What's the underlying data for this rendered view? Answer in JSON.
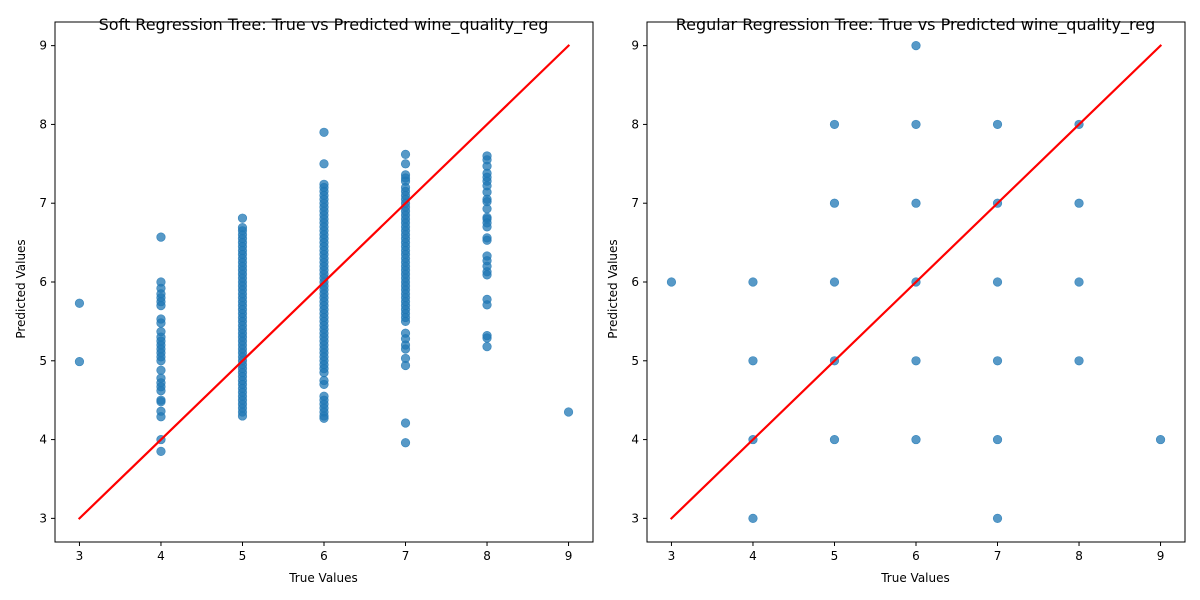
{
  "chart_data": [
    {
      "type": "scatter",
      "title": "Soft Regression Tree: True vs Predicted wine_quality_reg",
      "xlabel": "True Values",
      "ylabel": "Predicted Values",
      "xlim": [
        2.7,
        9.3
      ],
      "ylim": [
        2.7,
        9.3
      ],
      "xticks": [
        "3",
        "4",
        "5",
        "6",
        "7",
        "8",
        "9"
      ],
      "yticks": [
        "3",
        "4",
        "5",
        "6",
        "7",
        "8",
        "9"
      ],
      "grid": false,
      "point_color": "#1f77b4",
      "line_color": "#ff0000",
      "reference_line": {
        "x": [
          3,
          9
        ],
        "y": [
          3,
          9
        ]
      },
      "series": [
        {
          "points": [
            [
              3,
              5.73
            ],
            [
              3,
              4.99
            ],
            [
              4,
              6.57
            ],
            [
              4,
              6.0
            ],
            [
              4,
              5.92
            ],
            [
              4,
              5.85
            ],
            [
              4,
              5.8
            ],
            [
              4,
              5.75
            ],
            [
              4,
              5.7
            ],
            [
              4,
              5.53
            ],
            [
              4,
              5.48
            ],
            [
              4,
              5.37
            ],
            [
              4,
              5.3
            ],
            [
              4,
              5.25
            ],
            [
              4,
              5.2
            ],
            [
              4,
              5.15
            ],
            [
              4,
              5.1
            ],
            [
              4,
              5.05
            ],
            [
              4,
              5.0
            ],
            [
              4,
              4.88
            ],
            [
              4,
              4.78
            ],
            [
              4,
              4.72
            ],
            [
              4,
              4.67
            ],
            [
              4,
              4.62
            ],
            [
              4,
              4.5
            ],
            [
              4,
              4.48
            ],
            [
              4,
              4.36
            ],
            [
              4,
              4.29
            ],
            [
              4,
              4.0
            ],
            [
              4,
              3.85
            ],
            [
              5,
              6.81
            ],
            [
              5,
              6.69
            ],
            [
              5,
              6.65
            ],
            [
              5,
              6.6
            ],
            [
              5,
              6.55
            ],
            [
              5,
              6.5
            ],
            [
              5,
              6.45
            ],
            [
              5,
              6.4
            ],
            [
              5,
              6.35
            ],
            [
              5,
              6.3
            ],
            [
              5,
              6.25
            ],
            [
              5,
              6.2
            ],
            [
              5,
              6.15
            ],
            [
              5,
              6.1
            ],
            [
              5,
              6.05
            ],
            [
              5,
              6.0
            ],
            [
              5,
              5.95
            ],
            [
              5,
              5.9
            ],
            [
              5,
              5.85
            ],
            [
              5,
              5.8
            ],
            [
              5,
              5.75
            ],
            [
              5,
              5.7
            ],
            [
              5,
              5.65
            ],
            [
              5,
              5.6
            ],
            [
              5,
              5.55
            ],
            [
              5,
              5.5
            ],
            [
              5,
              5.45
            ],
            [
              5,
              5.4
            ],
            [
              5,
              5.35
            ],
            [
              5,
              5.3
            ],
            [
              5,
              5.25
            ],
            [
              5,
              5.2
            ],
            [
              5,
              5.15
            ],
            [
              5,
              5.1
            ],
            [
              5,
              5.05
            ],
            [
              5,
              5.0
            ],
            [
              5,
              4.95
            ],
            [
              5,
              4.9
            ],
            [
              5,
              4.85
            ],
            [
              5,
              4.8
            ],
            [
              5,
              4.75
            ],
            [
              5,
              4.7
            ],
            [
              5,
              4.65
            ],
            [
              5,
              4.6
            ],
            [
              5,
              4.55
            ],
            [
              5,
              4.5
            ],
            [
              5,
              4.45
            ],
            [
              5,
              4.4
            ],
            [
              5,
              4.35
            ],
            [
              5,
              4.3
            ],
            [
              6,
              7.9
            ],
            [
              6,
              7.5
            ],
            [
              6,
              7.24
            ],
            [
              6,
              7.2
            ],
            [
              6,
              7.15
            ],
            [
              6,
              7.1
            ],
            [
              6,
              7.05
            ],
            [
              6,
              7.0
            ],
            [
              6,
              6.95
            ],
            [
              6,
              6.9
            ],
            [
              6,
              6.85
            ],
            [
              6,
              6.8
            ],
            [
              6,
              6.75
            ],
            [
              6,
              6.7
            ],
            [
              6,
              6.65
            ],
            [
              6,
              6.6
            ],
            [
              6,
              6.55
            ],
            [
              6,
              6.5
            ],
            [
              6,
              6.45
            ],
            [
              6,
              6.4
            ],
            [
              6,
              6.35
            ],
            [
              6,
              6.3
            ],
            [
              6,
              6.25
            ],
            [
              6,
              6.2
            ],
            [
              6,
              6.15
            ],
            [
              6,
              6.1
            ],
            [
              6,
              6.05
            ],
            [
              6,
              6.0
            ],
            [
              6,
              5.95
            ],
            [
              6,
              5.9
            ],
            [
              6,
              5.85
            ],
            [
              6,
              5.8
            ],
            [
              6,
              5.75
            ],
            [
              6,
              5.7
            ],
            [
              6,
              5.65
            ],
            [
              6,
              5.6
            ],
            [
              6,
              5.55
            ],
            [
              6,
              5.5
            ],
            [
              6,
              5.45
            ],
            [
              6,
              5.4
            ],
            [
              6,
              5.35
            ],
            [
              6,
              5.3
            ],
            [
              6,
              5.25
            ],
            [
              6,
              5.2
            ],
            [
              6,
              5.15
            ],
            [
              6,
              5.1
            ],
            [
              6,
              5.05
            ],
            [
              6,
              5.0
            ],
            [
              6,
              4.95
            ],
            [
              6,
              4.9
            ],
            [
              6,
              4.85
            ],
            [
              6,
              4.75
            ],
            [
              6,
              4.7
            ],
            [
              6,
              4.55
            ],
            [
              6,
              4.5
            ],
            [
              6,
              4.45
            ],
            [
              6,
              4.4
            ],
            [
              6,
              4.35
            ],
            [
              6,
              4.3
            ],
            [
              6,
              4.27
            ],
            [
              7,
              7.62
            ],
            [
              7,
              7.5
            ],
            [
              7,
              7.36
            ],
            [
              7,
              7.32
            ],
            [
              7,
              7.28
            ],
            [
              7,
              7.2
            ],
            [
              7,
              7.15
            ],
            [
              7,
              7.1
            ],
            [
              7,
              7.05
            ],
            [
              7,
              7.0
            ],
            [
              7,
              6.95
            ],
            [
              7,
              6.9
            ],
            [
              7,
              6.85
            ],
            [
              7,
              6.8
            ],
            [
              7,
              6.75
            ],
            [
              7,
              6.7
            ],
            [
              7,
              6.65
            ],
            [
              7,
              6.6
            ],
            [
              7,
              6.55
            ],
            [
              7,
              6.5
            ],
            [
              7,
              6.45
            ],
            [
              7,
              6.4
            ],
            [
              7,
              6.35
            ],
            [
              7,
              6.3
            ],
            [
              7,
              6.25
            ],
            [
              7,
              6.2
            ],
            [
              7,
              6.15
            ],
            [
              7,
              6.1
            ],
            [
              7,
              6.05
            ],
            [
              7,
              6.0
            ],
            [
              7,
              5.95
            ],
            [
              7,
              5.9
            ],
            [
              7,
              5.85
            ],
            [
              7,
              5.8
            ],
            [
              7,
              5.75
            ],
            [
              7,
              5.7
            ],
            [
              7,
              5.65
            ],
            [
              7,
              5.6
            ],
            [
              7,
              5.55
            ],
            [
              7,
              5.5
            ],
            [
              7,
              5.35
            ],
            [
              7,
              5.28
            ],
            [
              7,
              5.2
            ],
            [
              7,
              5.15
            ],
            [
              7,
              5.03
            ],
            [
              7,
              4.94
            ],
            [
              7,
              4.21
            ],
            [
              7,
              3.96
            ],
            [
              8,
              7.6
            ],
            [
              8,
              7.55
            ],
            [
              8,
              7.47
            ],
            [
              8,
              7.38
            ],
            [
              8,
              7.33
            ],
            [
              8,
              7.28
            ],
            [
              8,
              7.22
            ],
            [
              8,
              7.14
            ],
            [
              8,
              7.05
            ],
            [
              8,
              7.02
            ],
            [
              8,
              6.93
            ],
            [
              8,
              6.82
            ],
            [
              8,
              6.8
            ],
            [
              8,
              6.75
            ],
            [
              8,
              6.7
            ],
            [
              8,
              6.56
            ],
            [
              8,
              6.53
            ],
            [
              8,
              6.33
            ],
            [
              8,
              6.27
            ],
            [
              8,
              6.2
            ],
            [
              8,
              6.13
            ],
            [
              8,
              6.09
            ],
            [
              8,
              5.78
            ],
            [
              8,
              5.71
            ],
            [
              8,
              5.32
            ],
            [
              8,
              5.29
            ],
            [
              8,
              5.18
            ],
            [
              9,
              4.35
            ]
          ]
        }
      ]
    },
    {
      "type": "scatter",
      "title": "Regular Regression Tree: True vs Predicted wine_quality_reg",
      "xlabel": "True Values",
      "ylabel": "Predicted Values",
      "xlim": [
        2.7,
        9.3
      ],
      "ylim": [
        2.7,
        9.3
      ],
      "xticks": [
        "3",
        "4",
        "5",
        "6",
        "7",
        "8",
        "9"
      ],
      "yticks": [
        "3",
        "4",
        "5",
        "6",
        "7",
        "8",
        "9"
      ],
      "grid": false,
      "point_color": "#1f77b4",
      "line_color": "#ff0000",
      "reference_line": {
        "x": [
          3,
          9
        ],
        "y": [
          3,
          9
        ]
      },
      "series": [
        {
          "points": [
            [
              3,
              6
            ],
            [
              4,
              6
            ],
            [
              4,
              5
            ],
            [
              4,
              4
            ],
            [
              4,
              3
            ],
            [
              5,
              8
            ],
            [
              5,
              7
            ],
            [
              5,
              6
            ],
            [
              5,
              5
            ],
            [
              5,
              4
            ],
            [
              6,
              9
            ],
            [
              6,
              8
            ],
            [
              6,
              7
            ],
            [
              6,
              6
            ],
            [
              6,
              5
            ],
            [
              6,
              4
            ],
            [
              7,
              8
            ],
            [
              7,
              7
            ],
            [
              7,
              6
            ],
            [
              7,
              5
            ],
            [
              7,
              4
            ],
            [
              7,
              3
            ],
            [
              8,
              8
            ],
            [
              8,
              7
            ],
            [
              8,
              6
            ],
            [
              8,
              5
            ],
            [
              9,
              4
            ]
          ]
        }
      ]
    }
  ]
}
